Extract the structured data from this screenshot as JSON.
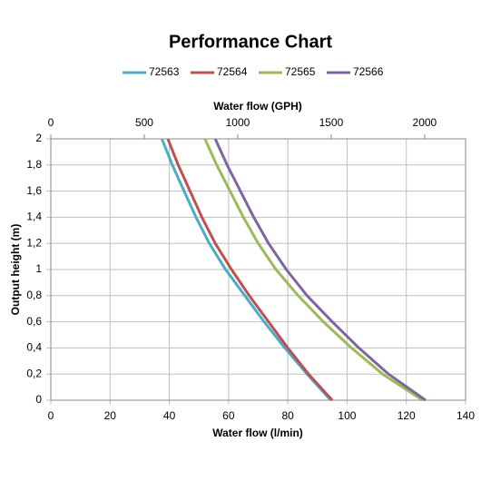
{
  "chart_data": {
    "type": "line",
    "title": "Performance Chart",
    "xlabel": "Water flow (l/min)",
    "x2label": "Water flow (GPH)",
    "ylabel": "Output height (m)",
    "xlim": [
      0,
      140
    ],
    "xticks": [
      0,
      20,
      40,
      60,
      80,
      100,
      120,
      140
    ],
    "x2lim": [
      0,
      2219
    ],
    "x2ticks": [
      0,
      500,
      1000,
      1500,
      2000
    ],
    "ylim": [
      0,
      2
    ],
    "yticks": [
      0,
      {
        "value": 0.2,
        "label": "0,2"
      },
      {
        "value": 0.4,
        "label": "0,4"
      },
      {
        "value": 0.6,
        "label": "0,6"
      },
      {
        "value": 0.8,
        "label": "0,8"
      },
      1,
      {
        "value": 1.2,
        "label": "1,2"
      },
      {
        "value": 1.4,
        "label": "1,4"
      },
      {
        "value": 1.6,
        "label": "1,6"
      },
      {
        "value": 1.8,
        "label": "1,8"
      },
      2
    ],
    "grid": true,
    "legend": "top",
    "series": [
      {
        "name": "72563",
        "color": "#4bacc6",
        "x": [
          37.5,
          41,
          45,
          49,
          53.5,
          59,
          65.5,
          72,
          79,
          86.5,
          94.5
        ],
        "values": [
          2,
          1.8,
          1.6,
          1.4,
          1.2,
          1.0,
          0.8,
          0.6,
          0.4,
          0.2,
          0
        ]
      },
      {
        "name": "72564",
        "color": "#c0504d",
        "x": [
          39.5,
          43,
          47,
          51,
          55.5,
          61,
          67,
          73.5,
          80,
          87,
          95
        ],
        "values": [
          2,
          1.8,
          1.6,
          1.4,
          1.2,
          1.0,
          0.8,
          0.6,
          0.4,
          0.2,
          0
        ]
      },
      {
        "name": "72565",
        "color": "#9bbb59",
        "x": [
          52,
          56,
          60.5,
          65,
          70,
          76,
          83.5,
          92,
          101.5,
          112,
          125.5
        ],
        "values": [
          2,
          1.8,
          1.6,
          1.4,
          1.2,
          1.0,
          0.8,
          0.6,
          0.4,
          0.2,
          0
        ]
      },
      {
        "name": "72566",
        "color": "#8064a2",
        "x": [
          55.5,
          59.5,
          64,
          68.5,
          73.5,
          79.5,
          86.5,
          95,
          104,
          114,
          126.5
        ],
        "values": [
          2,
          1.8,
          1.6,
          1.4,
          1.2,
          1.0,
          0.8,
          0.6,
          0.4,
          0.2,
          0
        ]
      }
    ]
  }
}
